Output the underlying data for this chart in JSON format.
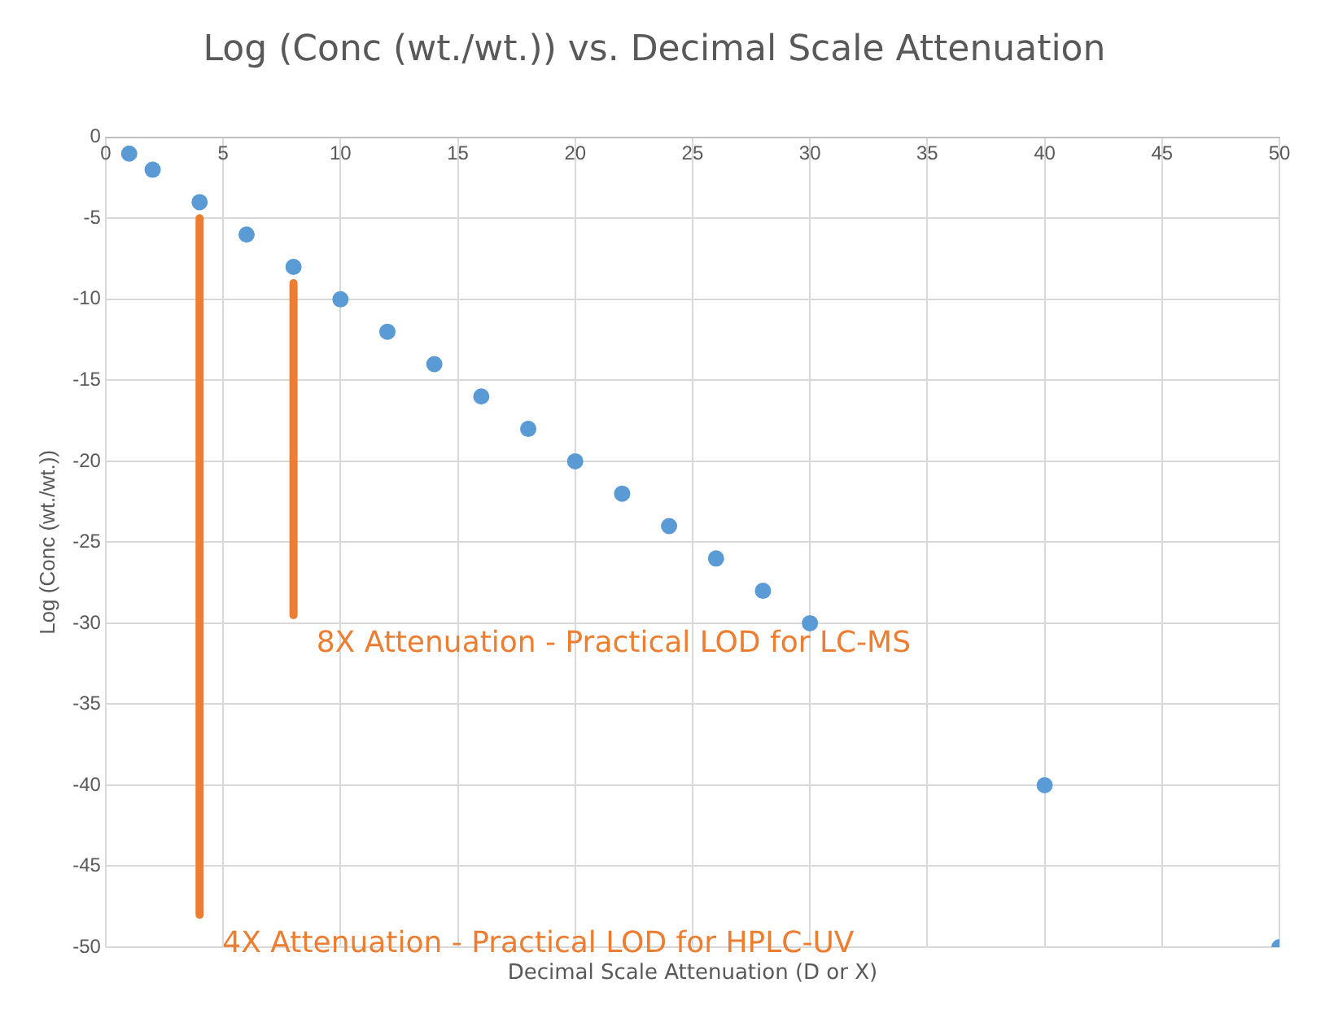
{
  "chart_data": {
    "type": "scatter",
    "title": "Log (Conc (wt./wt.)) vs. Decimal Scale Attenuation",
    "xlabel": "Decimal Scale Attenuation (D or X)",
    "ylabel": "Log (Conc (wt./wt.))",
    "xlim": [
      0,
      50
    ],
    "xticks": [
      0,
      5,
      10,
      15,
      20,
      25,
      30,
      35,
      40,
      45,
      50
    ],
    "ylim": [
      -50,
      0
    ],
    "yticks": [
      0,
      -5,
      -10,
      -15,
      -20,
      -25,
      -30,
      -35,
      -40,
      -45,
      -50
    ],
    "grid": true,
    "legend": false,
    "marker": "circle",
    "series": [
      {
        "type": "scatter",
        "color": "#5b9bd5",
        "x": [
          1,
          2,
          4,
          6,
          8,
          10,
          12,
          14,
          16,
          18,
          20,
          22,
          24,
          26,
          28,
          30,
          40,
          50
        ],
        "values": [
          -1,
          -2,
          -4,
          -6,
          -8,
          -10,
          -12,
          -14,
          -16,
          -18,
          -20,
          -22,
          -24,
          -26,
          -28,
          -30,
          -40,
          -50
        ]
      },
      {
        "type": "line",
        "color": "#ed7d31",
        "marker": "none",
        "x": [
          4,
          4
        ],
        "values": [
          -5,
          -48
        ]
      },
      {
        "type": "line",
        "color": "#ed7d31",
        "marker": "none",
        "x": [
          8,
          8
        ],
        "values": [
          -9,
          -29.5
        ]
      }
    ],
    "annotations": [
      "8X Attenuation - Practical LOD for LC-MS",
      "4X Attenuation - Practical LOD for HPLC-UV"
    ]
  }
}
